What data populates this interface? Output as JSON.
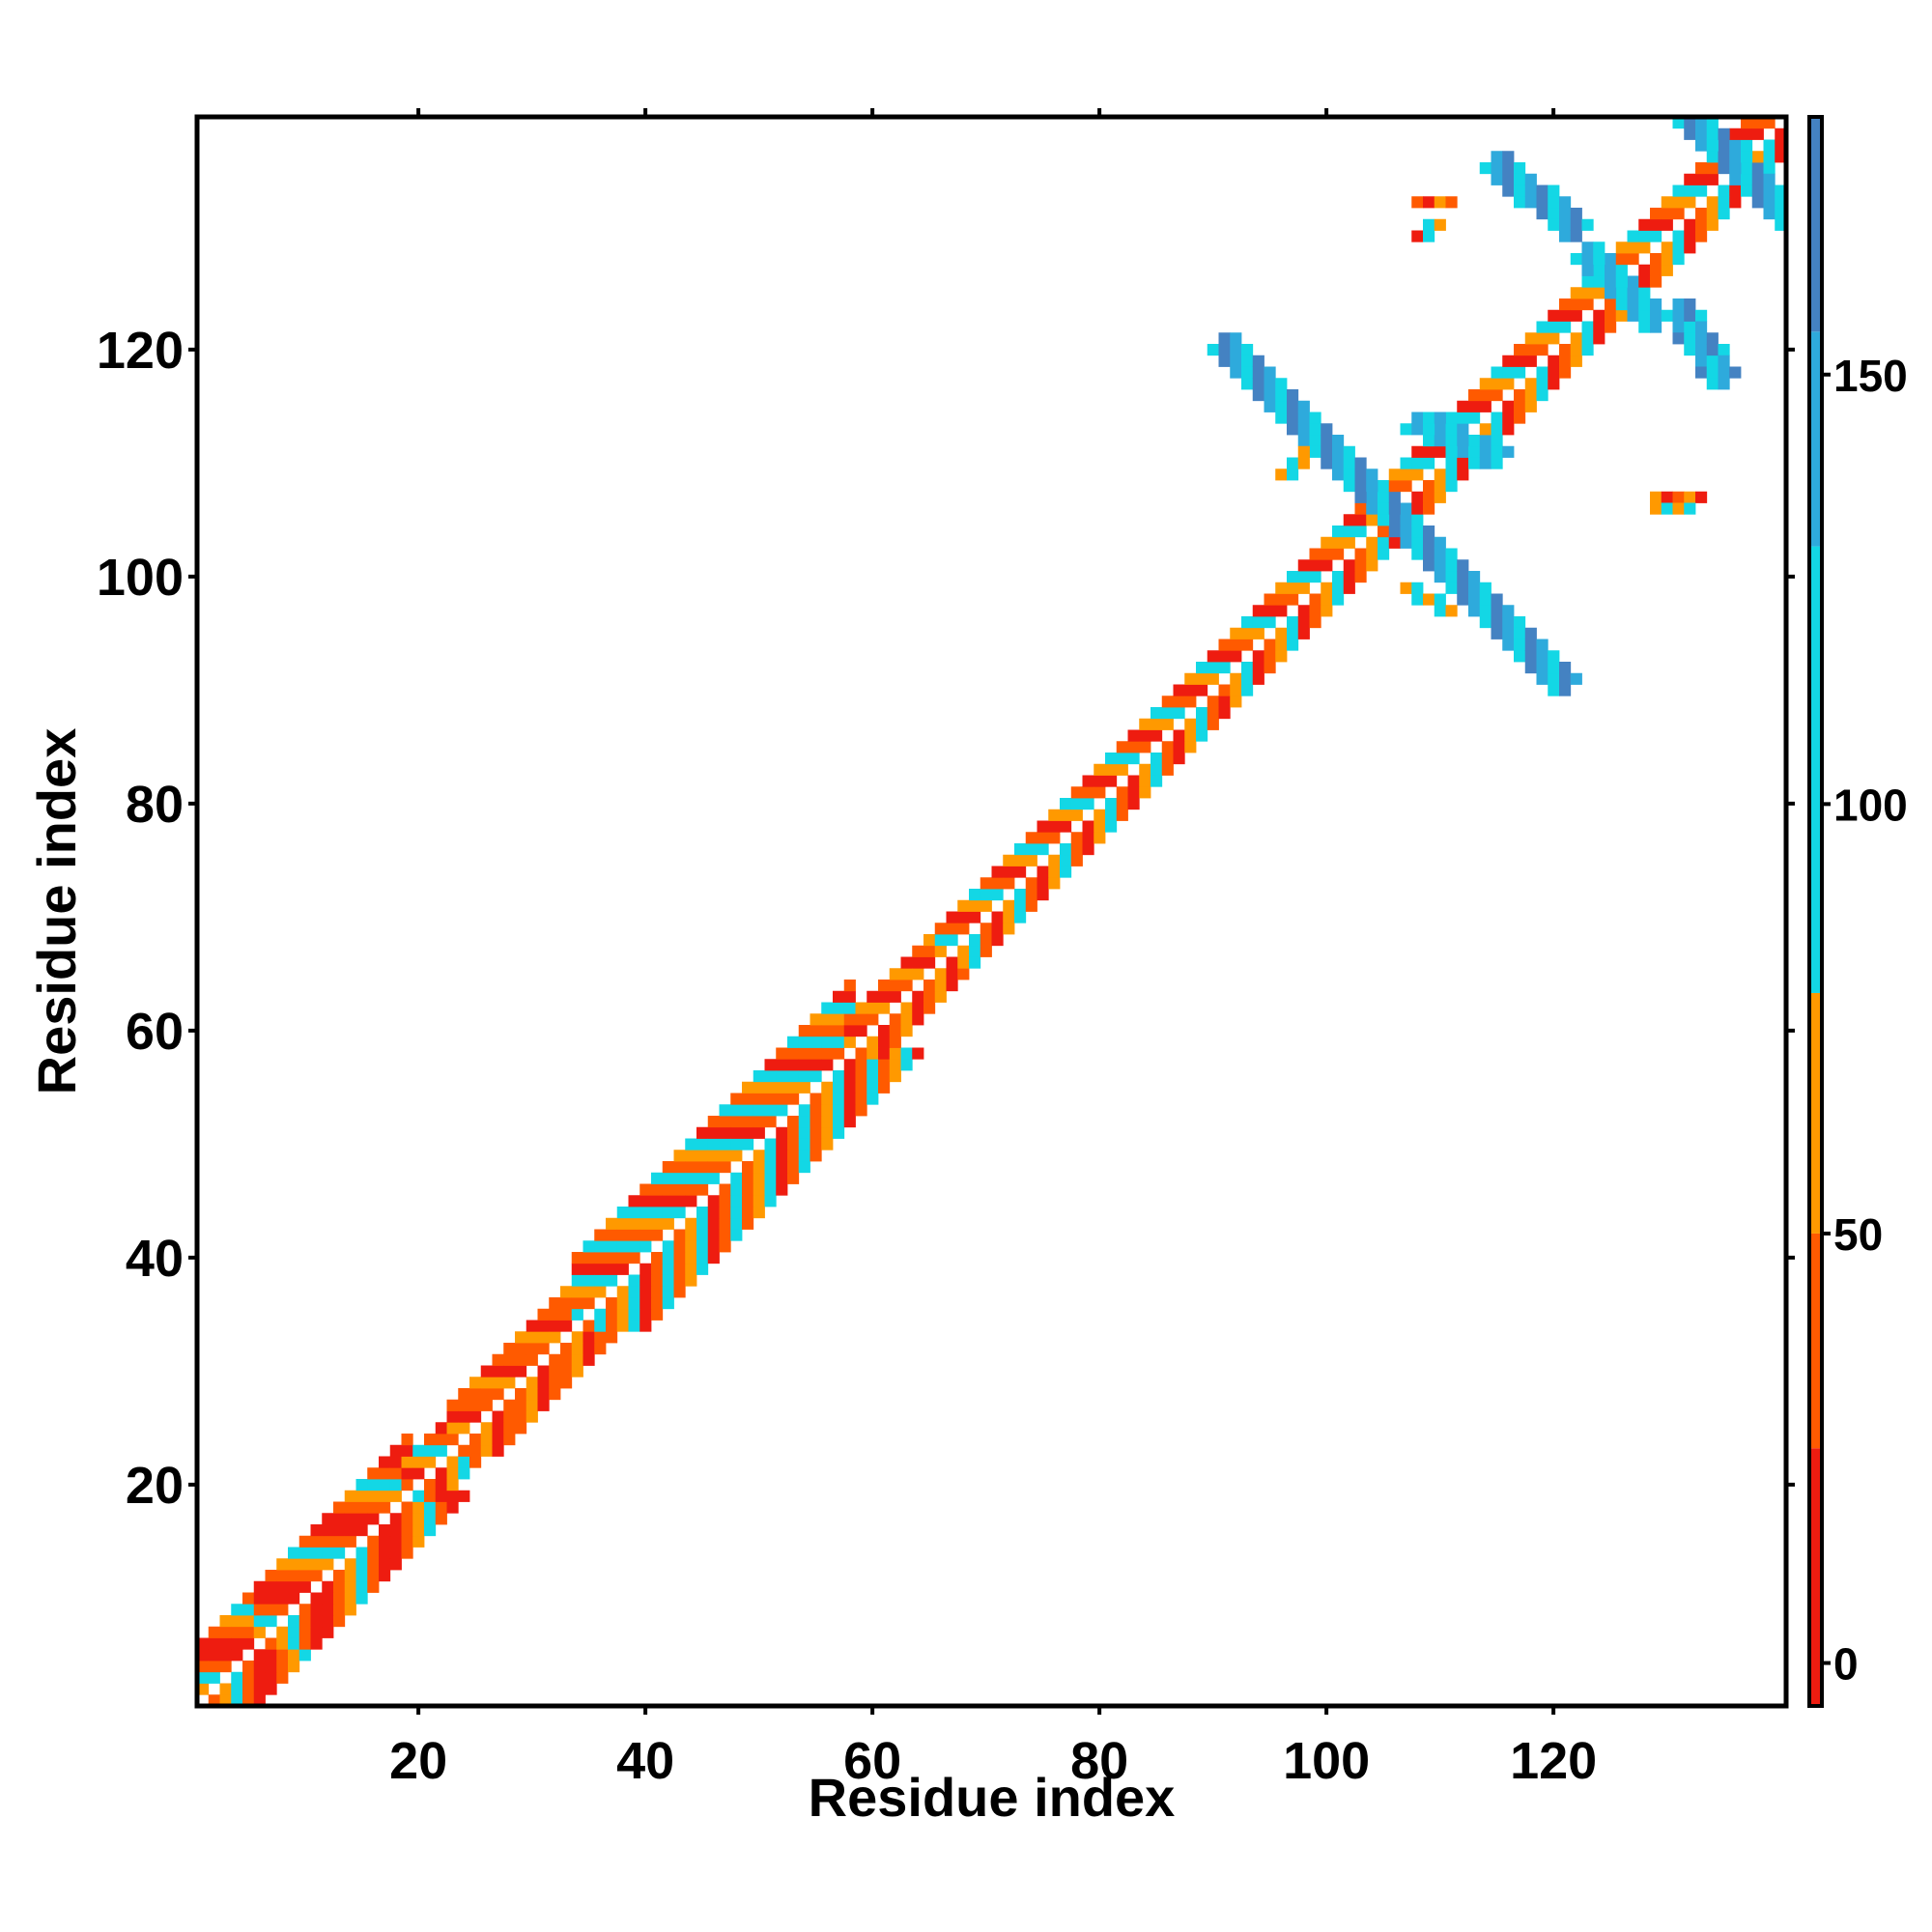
{
  "chart_data": {
    "type": "heatmap",
    "title": "",
    "xlabel": "Residue index",
    "ylabel": "Residue index",
    "xlim": [
      1,
      140
    ],
    "ylim": [
      1,
      140
    ],
    "x_ticks": [
      20,
      40,
      60,
      80,
      100,
      120
    ],
    "y_ticks": [
      20,
      40,
      60,
      80,
      100,
      120
    ],
    "x_tick_labels": [
      "20",
      "40",
      "60",
      "80",
      "100",
      "120"
    ],
    "y_tick_labels": [
      "20",
      "40",
      "60",
      "80",
      "100",
      "120"
    ],
    "colorbar": {
      "range": [
        -5,
        180
      ],
      "ticks": [
        0,
        50,
        100,
        150
      ],
      "tick_labels": [
        "0",
        "50",
        "100",
        "150"
      ],
      "bands": [
        {
          "from": -5,
          "to": 25,
          "color": "#ee1c10"
        },
        {
          "from": 25,
          "to": 50,
          "color": "#ff5a00"
        },
        {
          "from": 50,
          "to": 78,
          "color": "#ff9900"
        },
        {
          "from": 78,
          "to": 130,
          "color": "#13d7e5"
        },
        {
          "from": 130,
          "to": 155,
          "color": "#2eaadc"
        },
        {
          "from": 155,
          "to": 180,
          "color": "#4482c2"
        }
      ]
    },
    "grid": false,
    "legend": "colorbar-right",
    "regions": [
      {
        "kind": "band",
        "from": [
          1,
          1
        ],
        "to": [
          6,
          6
        ],
        "width": 5,
        "values": [
          20,
          45,
          60,
          105,
          45,
          20
        ]
      },
      {
        "kind": "band",
        "from": [
          6,
          6
        ],
        "to": [
          19,
          19
        ],
        "width": 5,
        "values": [
          20,
          45,
          60,
          105,
          45,
          20
        ]
      },
      {
        "kind": "band",
        "from": [
          19,
          19
        ],
        "to": [
          23,
          23
        ],
        "width": 3,
        "values": [
          60,
          105,
          45,
          20
        ]
      },
      {
        "kind": "band",
        "from": [
          23,
          23
        ],
        "to": [
          34,
          34
        ],
        "width": 4,
        "values": [
          15,
          45,
          40,
          60
        ]
      },
      {
        "kind": "band",
        "from": [
          34,
          34
        ],
        "to": [
          58,
          58
        ],
        "width": 6,
        "values": [
          20,
          45,
          105,
          45,
          60,
          105
        ]
      },
      {
        "kind": "band",
        "from": [
          58,
          58
        ],
        "to": [
          66,
          66
        ],
        "width": 3,
        "values": [
          20,
          45,
          60
        ]
      },
      {
        "kind": "band",
        "from": [
          66,
          66
        ],
        "to": [
          90,
          90
        ],
        "width": 3,
        "values": [
          45,
          20,
          60,
          105
        ]
      },
      {
        "kind": "band",
        "from": [
          90,
          90
        ],
        "to": [
          104,
          104
        ],
        "width": 3,
        "values": [
          20,
          45,
          60,
          105
        ]
      },
      {
        "kind": "band",
        "from": [
          104,
          104
        ],
        "to": [
          140,
          140
        ],
        "width": 3,
        "values": [
          20,
          45,
          60,
          105
        ]
      },
      {
        "kind": "antidiagonal",
        "from": [
          90,
          120
        ],
        "to": [
          120,
          90
        ],
        "width": 2,
        "values": [
          165,
          145,
          110
        ]
      },
      {
        "kind": "antidiagonal",
        "from": [
          122,
          128
        ],
        "to": [
          128,
          122
        ],
        "width": 2,
        "values": [
          110,
          145
        ]
      },
      {
        "kind": "antidiagonal",
        "from": [
          131,
          140
        ],
        "to": [
          140,
          131
        ],
        "width": 2,
        "values": [
          165,
          145,
          110
        ]
      },
      {
        "kind": "segment",
        "from": [
          114,
          136
        ],
        "to": [
          121,
          130
        ],
        "width": 2,
        "values": [
          150,
          165,
          110
        ]
      },
      {
        "kind": "segment",
        "from": [
          130,
          123
        ],
        "to": [
          134,
          117
        ],
        "width": 2,
        "values": [
          150,
          165,
          110
        ]
      },
      {
        "kind": "segment",
        "from": [
          107,
          113
        ],
        "to": [
          114,
          110
        ],
        "width": 2,
        "values": [
          110,
          150
        ]
      },
      {
        "kind": "segment",
        "from": [
          107,
          99
        ],
        "to": [
          110,
          97
        ],
        "width": 1,
        "values": [
          60,
          110
        ]
      },
      {
        "kind": "segment",
        "from": [
          96,
          109
        ],
        "to": [
          98,
          111
        ],
        "width": 1,
        "values": [
          60,
          110
        ]
      },
      {
        "kind": "segment",
        "from": [
          108,
          133
        ],
        "to": [
          110,
          133
        ],
        "width": 1,
        "values": [
          20,
          60,
          40
        ]
      },
      {
        "kind": "segment",
        "from": [
          108,
          130
        ],
        "to": [
          109,
          131
        ],
        "width": 1,
        "values": [
          110,
          60,
          20
        ]
      },
      {
        "kind": "segment",
        "from": [
          129,
          107
        ],
        "to": [
          132,
          107
        ],
        "width": 1,
        "values": [
          20,
          45,
          60
        ]
      },
      {
        "kind": "segment",
        "from": [
          129,
          106
        ],
        "to": [
          131,
          106
        ],
        "width": 1,
        "values": [
          60,
          105
        ]
      }
    ]
  }
}
